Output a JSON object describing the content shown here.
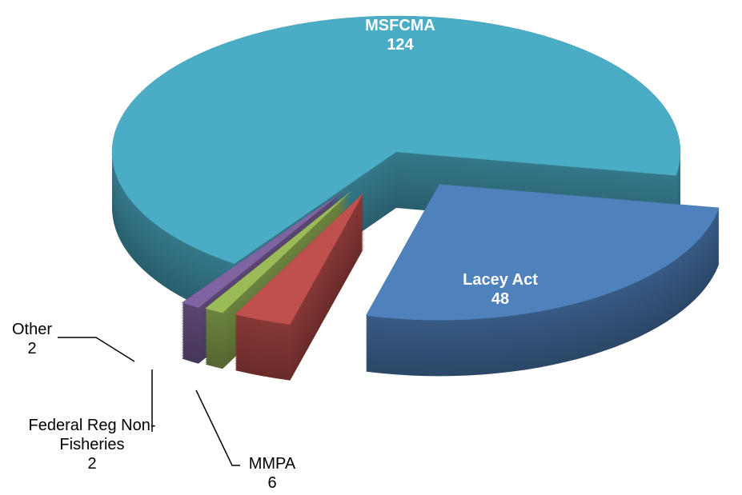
{
  "chart_data": {
    "type": "pie",
    "categories": [
      "MSFCMA",
      "Lacey Act",
      "MMPA",
      "Federal Reg Non-Fisheries",
      "Other"
    ],
    "values": [
      124,
      48,
      6,
      2,
      2
    ],
    "colors": [
      "#4bacc6",
      "#4f81bd",
      "#c0504d",
      "#9bbb59",
      "#8064a2"
    ]
  }
}
